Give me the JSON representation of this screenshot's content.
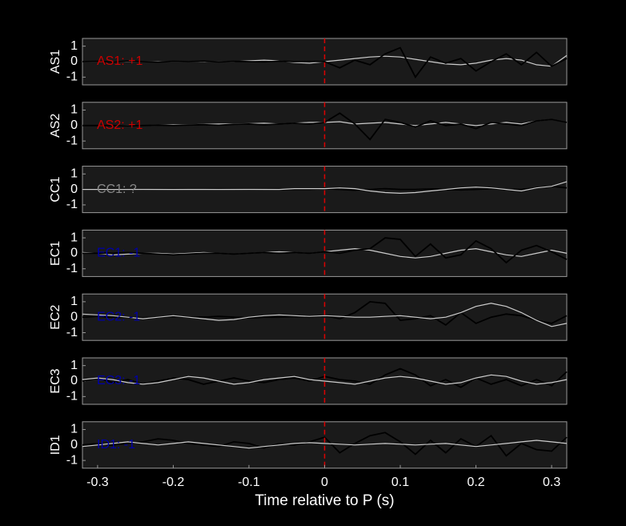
{
  "chart_data": [
    {
      "type": "line",
      "ylabel": "AS1",
      "annotation": "AS1: +1",
      "annotation_color": "#cc0000",
      "vline_x": 0,
      "vline_color": "#dd0000",
      "xlim": [
        -0.32,
        0.32
      ],
      "ylim": [
        -1.5,
        1.5
      ],
      "yticks": [
        -1,
        0,
        1
      ],
      "x": [
        -0.32,
        -0.3,
        -0.28,
        -0.26,
        -0.24,
        -0.22,
        -0.2,
        -0.18,
        -0.16,
        -0.14,
        -0.12,
        -0.1,
        -0.08,
        -0.06,
        -0.04,
        -0.02,
        0,
        0.02,
        0.04,
        0.06,
        0.08,
        0.1,
        0.12,
        0.14,
        0.16,
        0.18,
        0.2,
        0.22,
        0.24,
        0.26,
        0.28,
        0.3,
        0.32
      ],
      "series": [
        {
          "color": "#cccccc",
          "values": [
            0,
            0,
            0,
            0,
            0,
            0,
            0,
            0,
            0,
            0,
            0,
            0.05,
            0.1,
            0.05,
            -0.05,
            -0.1,
            0,
            0.1,
            0.2,
            0.3,
            0.35,
            0.3,
            0.15,
            0,
            -0.15,
            -0.2,
            -0.1,
            0.1,
            0.2,
            0.1,
            -0.2,
            -0.3,
            0.4
          ]
        },
        {
          "color": "#000000",
          "values": [
            0,
            0.02,
            -0.02,
            0.03,
            0,
            -0.03,
            0.02,
            0,
            0.03,
            -0.02,
            0.02,
            0,
            -0.02,
            0.03,
            0,
            0.02,
            0,
            -0.4,
            0.1,
            -0.2,
            0.5,
            0.9,
            -1,
            0.3,
            -0.1,
            0.2,
            -0.6,
            0,
            0.5,
            -0.2,
            0.6,
            -0.3,
            0.2
          ]
        }
      ]
    },
    {
      "type": "line",
      "ylabel": "AS2",
      "annotation": "AS2: +1",
      "annotation_color": "#cc0000",
      "vline_x": 0,
      "vline_color": "#dd0000",
      "xlim": [
        -0.32,
        0.32
      ],
      "ylim": [
        -1.5,
        1.5
      ],
      "yticks": [
        -1,
        0,
        1
      ],
      "x": [
        -0.32,
        -0.3,
        -0.28,
        -0.26,
        -0.24,
        -0.22,
        -0.2,
        -0.18,
        -0.16,
        -0.14,
        -0.12,
        -0.1,
        -0.08,
        -0.06,
        -0.04,
        -0.02,
        0,
        0.02,
        0.04,
        0.06,
        0.08,
        0.1,
        0.12,
        0.14,
        0.16,
        0.18,
        0.2,
        0.22,
        0.24,
        0.26,
        0.28,
        0.3,
        0.32
      ],
      "series": [
        {
          "color": "#cccccc",
          "values": [
            0,
            0,
            0,
            0,
            0,
            0.02,
            0.05,
            0.05,
            0.08,
            0.1,
            0.1,
            0.12,
            0.15,
            0.1,
            0.15,
            0.2,
            0.2,
            0.25,
            0.1,
            0.15,
            0.2,
            0.1,
            0,
            0.1,
            0.2,
            0.1,
            0,
            0.1,
            0.2,
            0.1,
            0.3,
            0.4,
            0.2
          ]
        },
        {
          "color": "#000000",
          "values": [
            0,
            0,
            0,
            -0.02,
            0,
            0.02,
            0,
            0.03,
            0.05,
            0.02,
            0.08,
            0.1,
            0.05,
            0.1,
            0.15,
            0.1,
            0.2,
            0.8,
            0.1,
            -0.9,
            0.4,
            0.2,
            -0.1,
            0.3,
            0,
            0.1,
            -0.2,
            0.2,
            0.1,
            0,
            0.3,
            0.4,
            0.2
          ]
        }
      ]
    },
    {
      "type": "line",
      "ylabel": "CC1",
      "annotation": "CC1: ?",
      "annotation_color": "#888888",
      "vline_x": 0,
      "vline_color": "#dd0000",
      "xlim": [
        -0.32,
        0.32
      ],
      "ylim": [
        -1.5,
        1.5
      ],
      "yticks": [
        -1,
        0,
        1
      ],
      "x": [
        -0.32,
        -0.3,
        -0.28,
        -0.26,
        -0.24,
        -0.22,
        -0.2,
        -0.18,
        -0.16,
        -0.14,
        -0.12,
        -0.1,
        -0.08,
        -0.06,
        -0.04,
        -0.02,
        0,
        0.02,
        0.04,
        0.06,
        0.08,
        0.1,
        0.12,
        0.14,
        0.16,
        0.18,
        0.2,
        0.22,
        0.24,
        0.26,
        0.28,
        0.3,
        0.32
      ],
      "series": [
        {
          "color": "#000000",
          "values": [
            0,
            0,
            0.02,
            0,
            -0.02,
            0,
            0.02,
            0,
            0,
            0.02,
            0,
            -0.02,
            0,
            0.02,
            0,
            0,
            0.05,
            0,
            -0.05,
            0,
            0.05,
            0,
            0,
            0.03,
            0,
            -0.03,
            0,
            0.05,
            0,
            0,
            0.1,
            0.2,
            0.1
          ]
        },
        {
          "color": "#cccccc",
          "values": [
            0,
            0,
            0,
            0,
            0,
            0,
            0,
            0,
            0,
            0,
            0,
            0,
            0,
            0,
            0.05,
            0.05,
            0.05,
            0.1,
            0.05,
            -0.1,
            -0.2,
            -0.25,
            -0.2,
            -0.1,
            0,
            0.1,
            0.15,
            0.1,
            0,
            -0.1,
            0.1,
            0.2,
            0.5
          ]
        }
      ]
    },
    {
      "type": "line",
      "ylabel": "EC1",
      "annotation": "EC1: -1",
      "annotation_color": "#0000aa",
      "vline_x": 0,
      "vline_color": "#dd0000",
      "xlim": [
        -0.32,
        0.32
      ],
      "ylim": [
        -1.5,
        1.5
      ],
      "yticks": [
        -1,
        0,
        1
      ],
      "x": [
        -0.32,
        -0.3,
        -0.28,
        -0.26,
        -0.24,
        -0.22,
        -0.2,
        -0.18,
        -0.16,
        -0.14,
        -0.12,
        -0.1,
        -0.08,
        -0.06,
        -0.04,
        -0.02,
        0,
        0.02,
        0.04,
        0.06,
        0.08,
        0.1,
        0.12,
        0.14,
        0.16,
        0.18,
        0.2,
        0.22,
        0.24,
        0.26,
        0.28,
        0.3,
        0.32
      ],
      "series": [
        {
          "color": "#cccccc",
          "values": [
            0.05,
            0,
            -0.1,
            -0.05,
            0,
            0,
            -0.05,
            0,
            0.05,
            0,
            -0.05,
            0,
            0.05,
            0.1,
            0.05,
            0,
            0.1,
            0.2,
            0.3,
            0.2,
            0,
            -0.2,
            -0.3,
            -0.2,
            0,
            0.2,
            0.3,
            0.1,
            -0.1,
            -0.2,
            0,
            0.2,
            0
          ]
        },
        {
          "color": "#000000",
          "values": [
            0,
            0,
            0,
            0.05,
            0,
            -0.05,
            -0.1,
            -0.05,
            0,
            0,
            -0.05,
            0,
            0.05,
            0,
            0.05,
            0,
            0.1,
            0,
            0.2,
            0.3,
            1.0,
            0.9,
            -0.2,
            0.6,
            -0.3,
            -0.1,
            0.8,
            0.3,
            -0.6,
            0.2,
            0.5,
            0.1,
            -0.4
          ]
        }
      ]
    },
    {
      "type": "line",
      "ylabel": "EC2",
      "annotation": "EC2: -1",
      "annotation_color": "#0000aa",
      "vline_x": 0,
      "vline_color": "#dd0000",
      "xlim": [
        -0.32,
        0.32
      ],
      "ylim": [
        -1.5,
        1.5
      ],
      "yticks": [
        -1,
        0,
        1
      ],
      "x": [
        -0.32,
        -0.3,
        -0.28,
        -0.26,
        -0.24,
        -0.22,
        -0.2,
        -0.18,
        -0.16,
        -0.14,
        -0.12,
        -0.1,
        -0.08,
        -0.06,
        -0.04,
        -0.02,
        0,
        0.02,
        0.04,
        0.06,
        0.08,
        0.1,
        0.12,
        0.14,
        0.16,
        0.18,
        0.2,
        0.22,
        0.24,
        0.26,
        0.28,
        0.3,
        0.32
      ],
      "series": [
        {
          "color": "#000000",
          "values": [
            0,
            0.05,
            0,
            0,
            -0.05,
            0,
            0.05,
            0,
            0,
            0.05,
            0,
            -0.05,
            0,
            0,
            0.05,
            0,
            0.1,
            -0.1,
            0.3,
            1.0,
            0.9,
            -0.2,
            -0.1,
            0.1,
            -0.5,
            0.3,
            -0.4,
            0,
            0.2,
            0.1,
            -0.2,
            -0.4,
            0.1
          ]
        },
        {
          "color": "#cccccc",
          "values": [
            0.2,
            0.15,
            0.1,
            0,
            -0.1,
            0,
            0.1,
            0,
            -0.1,
            -0.2,
            -0.15,
            0,
            0.1,
            0.15,
            0.1,
            0.05,
            0.1,
            0.05,
            0,
            0,
            0.05,
            0.1,
            0,
            -0.1,
            0,
            0.3,
            0.7,
            0.9,
            0.7,
            0.3,
            -0.2,
            -0.6,
            -0.4
          ]
        }
      ]
    },
    {
      "type": "line",
      "ylabel": "EC3",
      "annotation": "EC3: -1",
      "annotation_color": "#0000aa",
      "vline_x": 0,
      "vline_color": "#dd0000",
      "xlim": [
        -0.32,
        0.32
      ],
      "ylim": [
        -1.5,
        1.5
      ],
      "yticks": [
        -1,
        0,
        1
      ],
      "x": [
        -0.32,
        -0.3,
        -0.28,
        -0.26,
        -0.24,
        -0.22,
        -0.2,
        -0.18,
        -0.16,
        -0.14,
        -0.12,
        -0.1,
        -0.08,
        -0.06,
        -0.04,
        -0.02,
        0,
        0.02,
        0.04,
        0.06,
        0.08,
        0.1,
        0.12,
        0.14,
        0.16,
        0.18,
        0.2,
        0.22,
        0.24,
        0.26,
        0.28,
        0.3,
        0.32
      ],
      "series": [
        {
          "color": "#000000",
          "values": [
            0,
            0.2,
            -0.1,
            0.1,
            -0.2,
            0,
            0.2,
            0.1,
            -0.2,
            0,
            0.2,
            0,
            -0.1,
            0.1,
            0.2,
            0,
            0.3,
            0.1,
            0,
            -0.2,
            0.4,
            0.8,
            0.4,
            -0.3,
            0.1,
            -0.4,
            0.2,
            -0.2,
            0.1,
            -0.3,
            0.1,
            -0.3,
            0.6
          ]
        },
        {
          "color": "#cccccc",
          "values": [
            0.1,
            0.2,
            0.1,
            -0.1,
            -0.2,
            -0.1,
            0.1,
            0.3,
            0.2,
            0,
            -0.2,
            -0.1,
            0.1,
            0.2,
            0.3,
            0.1,
            0,
            -0.1,
            -0.2,
            0,
            0.2,
            0.3,
            0.2,
            0,
            -0.2,
            -0.1,
            0.2,
            0.4,
            0.3,
            0,
            -0.2,
            -0.1,
            0.1
          ]
        }
      ]
    },
    {
      "type": "line",
      "ylabel": "ID1",
      "annotation": "ID1: -1",
      "annotation_color": "#0000aa",
      "vline_x": 0,
      "vline_color": "#dd0000",
      "xlim": [
        -0.32,
        0.32
      ],
      "ylim": [
        -1.5,
        1.5
      ],
      "yticks": [
        -1,
        0,
        1
      ],
      "xticks": [
        -0.3,
        -0.2,
        -0.1,
        0,
        0.1,
        0.2,
        0.3
      ],
      "xlabel": "Time relative to P (s)",
      "x": [
        -0.32,
        -0.3,
        -0.28,
        -0.26,
        -0.24,
        -0.22,
        -0.2,
        -0.18,
        -0.16,
        -0.14,
        -0.12,
        -0.1,
        -0.08,
        -0.06,
        -0.04,
        -0.02,
        0,
        0.02,
        0.04,
        0.06,
        0.08,
        0.1,
        0.12,
        0.14,
        0.16,
        0.18,
        0.2,
        0.22,
        0.24,
        0.26,
        0.28,
        0.3,
        0.32
      ],
      "series": [
        {
          "color": "#000000",
          "values": [
            0,
            0.1,
            0,
            0.1,
            0.2,
            0.4,
            0.3,
            0.1,
            0,
            -0.1,
            0.2,
            0.1,
            -0.2,
            0.1,
            0,
            0.2,
            0.5,
            -0.5,
            0.1,
            0.6,
            0.8,
            0.2,
            -0.6,
            0.3,
            -0.5,
            0.4,
            -0.1,
            0.6,
            -0.7,
            0.1,
            -0.3,
            -0.4,
            0.5
          ]
        },
        {
          "color": "#cccccc",
          "values": [
            -0.1,
            0,
            0.1,
            0.2,
            0.1,
            0,
            0.1,
            0.2,
            0.1,
            0,
            -0.1,
            -0.2,
            -0.1,
            0,
            0.1,
            0.15,
            0.1,
            0.05,
            0,
            0.05,
            0.1,
            0.05,
            0,
            0.05,
            0.1,
            0,
            -0.1,
            0,
            0.1,
            0.2,
            0.3,
            0.2,
            0.1
          ]
        }
      ]
    }
  ]
}
